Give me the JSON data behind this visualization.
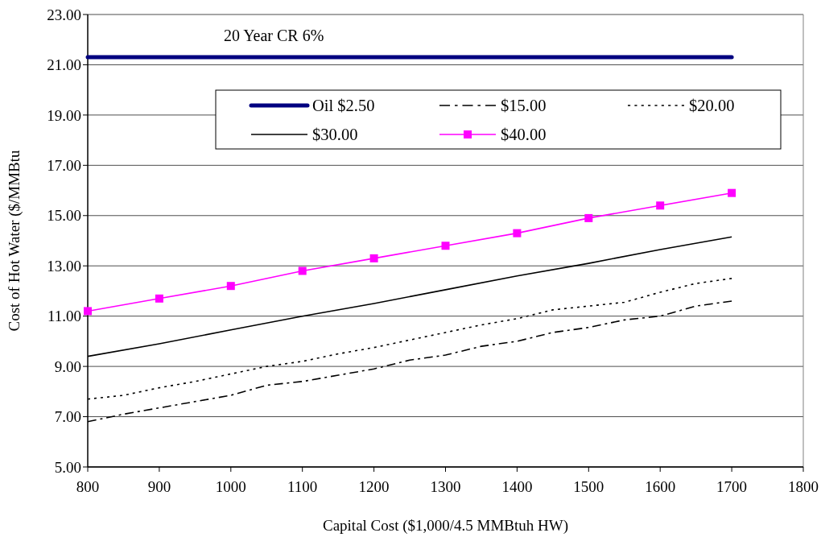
{
  "chart_data": {
    "type": "line",
    "xlabel": "Capital Cost ($1,000/4.5 MMBtuh HW)",
    "ylabel": "Cost of Hot Water ($/MMBtu",
    "annotations": [
      "20 Year CR 6%"
    ],
    "xlim": [
      800,
      1800
    ],
    "xticks": [
      800,
      900,
      1000,
      1100,
      1200,
      1300,
      1400,
      1500,
      1600,
      1700,
      1800
    ],
    "ylim": [
      5,
      23
    ],
    "yticks": [
      {
        "value": 5,
        "label": "5.00"
      },
      {
        "value": 7,
        "label": "7.00"
      },
      {
        "value": 9,
        "label": "9.00"
      },
      {
        "value": 11,
        "label": "11.00"
      },
      {
        "value": 13,
        "label": "13.00"
      },
      {
        "value": 15,
        "label": "15.00"
      },
      {
        "value": 17,
        "label": "17.00"
      },
      {
        "value": 19,
        "label": "19.00"
      },
      {
        "value": 21,
        "label": "21.00"
      },
      {
        "value": 23,
        "label": "23.00"
      }
    ],
    "grid": "y",
    "legend": "top right",
    "marker": "none",
    "series": [
      {
        "name": "Oil $2.50",
        "color": "#000080",
        "line_style": "solid",
        "x": [
          800,
          900,
          1000,
          1100,
          1200,
          1300,
          1400,
          1500,
          1600,
          1700
        ],
        "values": [
          21.3,
          21.3,
          21.3,
          21.3,
          21.3,
          21.3,
          21.3,
          21.3,
          21.3,
          21.3
        ]
      },
      {
        "name": "$15.00",
        "color": "#000000",
        "line_style": "dashed",
        "x": [
          800,
          850,
          900,
          950,
          1000,
          1050,
          1100,
          1150,
          1200,
          1250,
          1300,
          1350,
          1400,
          1450,
          1500,
          1550,
          1600,
          1650,
          1700
        ],
        "values": [
          6.8,
          7.1,
          7.35,
          7.6,
          7.85,
          8.25,
          8.4,
          8.65,
          8.9,
          9.25,
          9.45,
          9.8,
          10.0,
          10.35,
          10.55,
          10.85,
          11.0,
          11.4,
          11.6
        ]
      },
      {
        "name": "$20.00",
        "color": "#000000",
        "line_style": "dotted",
        "x": [
          800,
          850,
          900,
          950,
          1000,
          1050,
          1100,
          1150,
          1200,
          1250,
          1300,
          1350,
          1400,
          1450,
          1500,
          1550,
          1600,
          1650,
          1700
        ],
        "values": [
          7.7,
          7.85,
          8.15,
          8.4,
          8.7,
          9.0,
          9.2,
          9.5,
          9.75,
          10.05,
          10.35,
          10.65,
          10.9,
          11.25,
          11.4,
          11.55,
          11.95,
          12.3,
          12.5
        ]
      },
      {
        "name": "$30.00",
        "color": "#000000",
        "line_style": "solid",
        "x": [
          800,
          900,
          1000,
          1100,
          1200,
          1300,
          1400,
          1500,
          1600,
          1700
        ],
        "values": [
          9.4,
          9.9,
          10.45,
          11.0,
          11.5,
          12.05,
          12.6,
          13.1,
          13.65,
          14.15
        ]
      },
      {
        "name": "$40.00",
        "color": "#ff00ff",
        "line_style": "solid",
        "marker": "square",
        "x": [
          800,
          900,
          1000,
          1100,
          1200,
          1300,
          1400,
          1500,
          1600,
          1700
        ],
        "values": [
          11.2,
          11.7,
          12.2,
          12.8,
          13.3,
          13.8,
          14.3,
          14.9,
          15.4,
          15.9
        ]
      }
    ]
  }
}
